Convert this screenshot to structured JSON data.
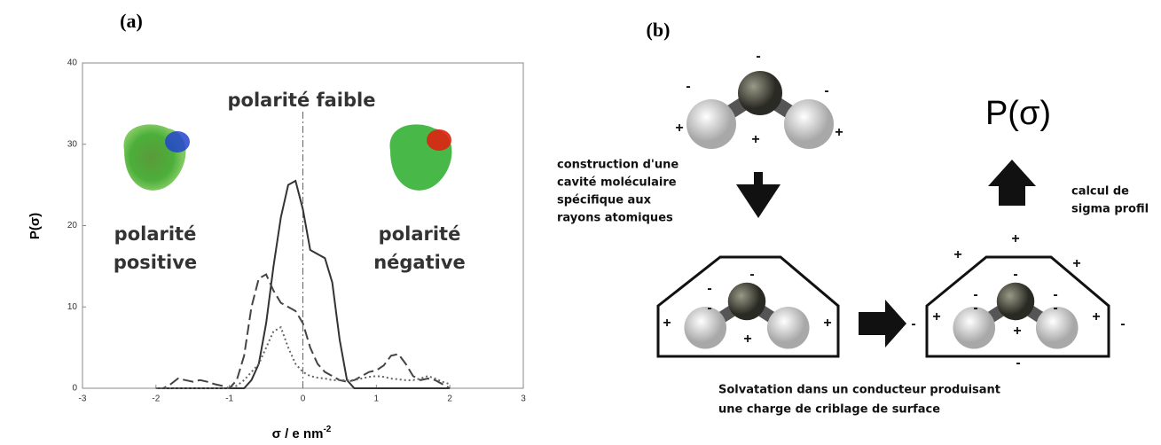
{
  "chart_data": {
    "type": "line",
    "title": "(a)",
    "x_label": "σ / e nm",
    "x_label_sup": "-2",
    "y_label": "P(σ)",
    "xlim": [
      -3,
      3
    ],
    "xticks": [
      -3,
      -2,
      -1,
      0,
      1,
      2,
      3
    ],
    "ylim": [
      0,
      40
    ],
    "yticks": [
      0,
      10,
      20,
      30,
      40
    ],
    "vline": 0,
    "annotations": [
      "polarité faible",
      "polarité",
      "positive",
      "polarité",
      "négative"
    ],
    "x": [
      -2,
      -1.9,
      -1.8,
      -1.7,
      -1.6,
      -1.5,
      -1.4,
      -1.3,
      -1.2,
      -1.1,
      -1,
      -0.9,
      -0.8,
      -0.7,
      -0.6,
      -0.5,
      -0.4,
      -0.3,
      -0.2,
      -0.1,
      0,
      0.1,
      0.2,
      0.3,
      0.4,
      0.5,
      0.6,
      0.7,
      0.8,
      0.9,
      1,
      1.1,
      1.2,
      1.3,
      1.4,
      1.5,
      1.6,
      1.7,
      1.8,
      1.9,
      2
    ],
    "series": [
      {
        "color": "#333333",
        "dash": "solid",
        "values": [
          0,
          0,
          0,
          0,
          0,
          0,
          0,
          0,
          0,
          0,
          0,
          0,
          0,
          1,
          3,
          8,
          15,
          21,
          25,
          25.5,
          22,
          17,
          16.5,
          16,
          13,
          6,
          1,
          0,
          0,
          0,
          0,
          0,
          0,
          0,
          0,
          0,
          0,
          0,
          0,
          0,
          0
        ]
      },
      {
        "color": "#444444",
        "dash": "dashed",
        "values": [
          0,
          0,
          0.5,
          1.2,
          1,
          0.8,
          1,
          0.8,
          0.5,
          0.3,
          0,
          1,
          4,
          10,
          13.5,
          14,
          12,
          10.5,
          10,
          9.5,
          8,
          5,
          3,
          2,
          1.5,
          1,
          0.8,
          1,
          1.5,
          2,
          2.2,
          2.8,
          4,
          4.2,
          3,
          1.5,
          1,
          1.2,
          1,
          0.5,
          0
        ]
      },
      {
        "color": "#666666",
        "dash": "dotted",
        "values": [
          0,
          0,
          0,
          0,
          0,
          0,
          0,
          0,
          0,
          0,
          0,
          0.3,
          1,
          2,
          3,
          5,
          7,
          7.5,
          5,
          3,
          2,
          1.5,
          1.3,
          1.2,
          1,
          1,
          1,
          1,
          1.2,
          1.4,
          1.5,
          1.4,
          1.2,
          1.1,
          1,
          1,
          1.2,
          1.5,
          1.2,
          0.8,
          0.5
        ]
      }
    ]
  },
  "diagram": {
    "title": "(b)",
    "output": "P(σ)",
    "step_1": [
      "construction d'une",
      "cavité moléculaire",
      "spécifique aux",
      "rayons atomiques"
    ],
    "step_2": [
      "Solvatation dans un conducteur produisant",
      "une charge de criblage de surface"
    ],
    "step_3": [
      "calcul de",
      "sigma profil"
    ],
    "charges_1": [
      "-",
      "-",
      "-",
      "+",
      "+",
      "+"
    ],
    "charges_2": [
      "-",
      "-",
      "-",
      "+",
      "+",
      "+"
    ],
    "charges_3": [
      "-",
      "-",
      "-",
      "-",
      "-",
      "+",
      "+",
      "+",
      "+",
      "+",
      "+",
      "-",
      "-"
    ]
  }
}
